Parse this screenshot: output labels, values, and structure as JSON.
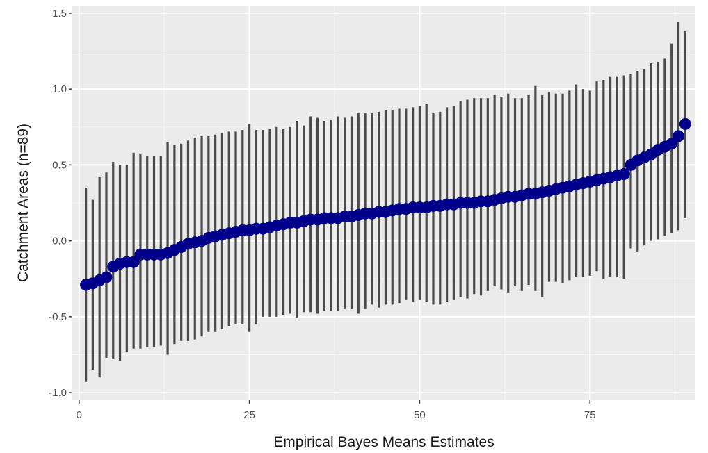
{
  "chart_data": {
    "type": "scatter",
    "title": "",
    "xlabel": "Empirical Bayes Means Estimates",
    "ylabel": "Catchment Areas (n=89)",
    "xlim": [
      -1.0,
      90.5
    ],
    "ylim": [
      -1.05,
      1.55
    ],
    "x_ticks": [
      0,
      25,
      50,
      75
    ],
    "x_tick_labels": [
      "0",
      "25",
      "50",
      "75"
    ],
    "y_ticks": [
      -1.0,
      -0.5,
      0.0,
      0.5,
      1.0,
      1.5
    ],
    "y_tick_labels": [
      "-1.0",
      "-0.5",
      "0.0",
      "0.5",
      "1.0",
      "1.5"
    ],
    "grid": true,
    "legend": "none",
    "colors": {
      "panel_background": "#ebebeb",
      "grid_major": "#ffffff",
      "grid_minor": "#f5f5f5",
      "point": "#00008b",
      "interval": "#4a4a4a"
    },
    "x": [
      1,
      2,
      3,
      4,
      5,
      6,
      7,
      8,
      9,
      10,
      11,
      12,
      13,
      14,
      15,
      16,
      17,
      18,
      19,
      20,
      21,
      22,
      23,
      24,
      25,
      26,
      27,
      28,
      29,
      30,
      31,
      32,
      33,
      34,
      35,
      36,
      37,
      38,
      39,
      40,
      41,
      42,
      43,
      44,
      45,
      46,
      47,
      48,
      49,
      50,
      51,
      52,
      53,
      54,
      55,
      56,
      57,
      58,
      59,
      60,
      61,
      62,
      63,
      64,
      65,
      66,
      67,
      68,
      69,
      70,
      71,
      72,
      73,
      74,
      75,
      76,
      77,
      78,
      79,
      80,
      81,
      82,
      83,
      84,
      85,
      86,
      87,
      88,
      89
    ],
    "estimate": [
      -0.29,
      -0.28,
      -0.26,
      -0.24,
      -0.17,
      -0.15,
      -0.14,
      -0.14,
      -0.09,
      -0.09,
      -0.09,
      -0.09,
      -0.08,
      -0.06,
      -0.04,
      -0.02,
      -0.01,
      0.0,
      0.02,
      0.03,
      0.04,
      0.05,
      0.06,
      0.07,
      0.07,
      0.08,
      0.08,
      0.09,
      0.1,
      0.11,
      0.12,
      0.12,
      0.13,
      0.14,
      0.14,
      0.15,
      0.15,
      0.15,
      0.16,
      0.16,
      0.17,
      0.18,
      0.18,
      0.19,
      0.19,
      0.2,
      0.21,
      0.21,
      0.22,
      0.22,
      0.22,
      0.23,
      0.23,
      0.24,
      0.24,
      0.25,
      0.25,
      0.25,
      0.26,
      0.26,
      0.27,
      0.28,
      0.29,
      0.29,
      0.3,
      0.31,
      0.31,
      0.32,
      0.33,
      0.34,
      0.35,
      0.36,
      0.37,
      0.38,
      0.39,
      0.4,
      0.41,
      0.42,
      0.43,
      0.44,
      0.5,
      0.53,
      0.55,
      0.57,
      0.6,
      0.62,
      0.64,
      0.69,
      0.77
    ],
    "lower": [
      -0.93,
      -0.85,
      -0.9,
      -0.77,
      -0.78,
      -0.79,
      -0.73,
      -0.71,
      -0.71,
      -0.7,
      -0.7,
      -0.69,
      -0.75,
      -0.68,
      -0.66,
      -0.66,
      -0.65,
      -0.63,
      -0.6,
      -0.6,
      -0.58,
      -0.56,
      -0.55,
      -0.55,
      -0.6,
      -0.55,
      -0.5,
      -0.5,
      -0.5,
      -0.49,
      -0.48,
      -0.51,
      -0.47,
      -0.47,
      -0.48,
      -0.46,
      -0.46,
      -0.46,
      -0.45,
      -0.45,
      -0.48,
      -0.45,
      -0.42,
      -0.44,
      -0.42,
      -0.42,
      -0.41,
      -0.39,
      -0.4,
      -0.39,
      -0.4,
      -0.42,
      -0.42,
      -0.4,
      -0.39,
      -0.37,
      -0.38,
      -0.35,
      -0.36,
      -0.33,
      -0.3,
      -0.32,
      -0.34,
      -0.3,
      -0.33,
      -0.29,
      -0.33,
      -0.37,
      -0.27,
      -0.27,
      -0.28,
      -0.26,
      -0.24,
      -0.24,
      -0.23,
      -0.2,
      -0.25,
      -0.24,
      -0.24,
      -0.25,
      -0.05,
      -0.07,
      -0.03,
      0.0,
      0.01,
      0.03,
      0.05,
      0.07,
      0.15
    ],
    "upper": [
      0.35,
      0.27,
      0.42,
      0.45,
      0.52,
      0.5,
      0.5,
      0.58,
      0.57,
      0.56,
      0.56,
      0.56,
      0.65,
      0.63,
      0.64,
      0.66,
      0.68,
      0.69,
      0.69,
      0.7,
      0.71,
      0.72,
      0.72,
      0.73,
      0.77,
      0.73,
      0.73,
      0.74,
      0.75,
      0.74,
      0.75,
      0.79,
      0.76,
      0.82,
      0.81,
      0.79,
      0.8,
      0.82,
      0.81,
      0.82,
      0.84,
      0.84,
      0.84,
      0.85,
      0.86,
      0.86,
      0.87,
      0.87,
      0.88,
      0.89,
      0.9,
      0.84,
      0.85,
      0.88,
      0.89,
      0.92,
      0.93,
      0.94,
      0.94,
      0.94,
      0.96,
      0.95,
      0.97,
      0.94,
      0.94,
      0.96,
      1.02,
      0.96,
      0.98,
      0.97,
      0.97,
      0.99,
      1.03,
      1.0,
      0.99,
      1.05,
      1.06,
      1.08,
      1.08,
      1.09,
      1.1,
      1.12,
      1.13,
      1.17,
      1.18,
      1.2,
      1.3,
      1.44,
      1.38
    ]
  }
}
